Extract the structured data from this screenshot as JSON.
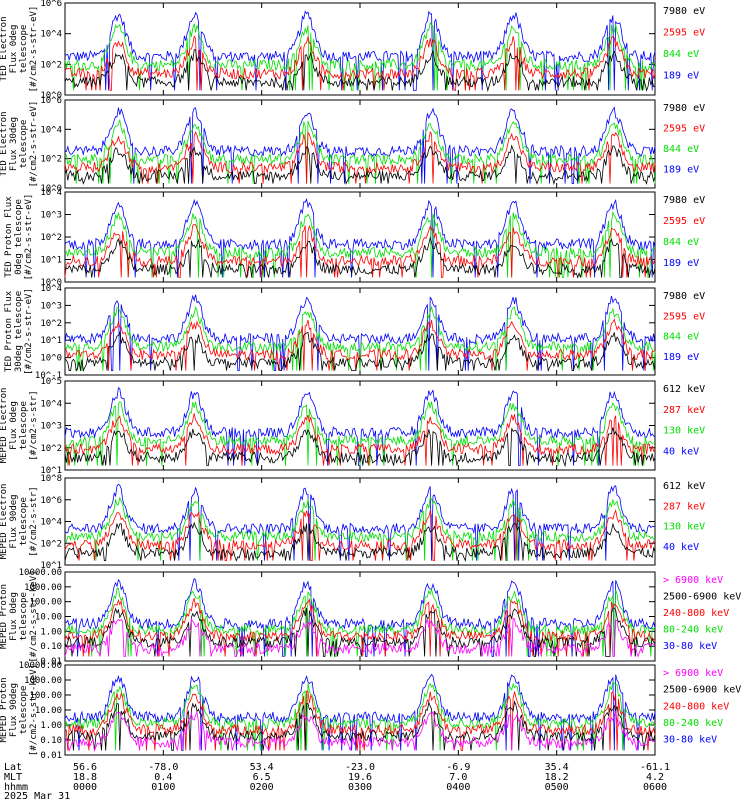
{
  "date_label": "2025 Mar 31",
  "colors": {
    "blue": "#0000ff",
    "red": "#ff0000",
    "green": "#00e000",
    "black": "#000000",
    "magenta": "#ff00ff"
  },
  "footer": {
    "row_labels": [
      "Lat",
      "MLT",
      "hhmm"
    ],
    "columns": [
      {
        "lat": "56.6",
        "mlt": "18.8",
        "hhmm": "0000"
      },
      {
        "lat": "-78.0",
        "mlt": "0.4",
        "hhmm": "0100"
      },
      {
        "lat": "53.4",
        "mlt": "6.5",
        "hhmm": "0200"
      },
      {
        "lat": "-23.0",
        "mlt": "19.6",
        "hhmm": "0300"
      },
      {
        "lat": "-6.9",
        "mlt": "7.0",
        "hhmm": "0400"
      },
      {
        "lat": "35.4",
        "mlt": "18.2",
        "hhmm": "0500"
      },
      {
        "lat": "-61.1",
        "mlt": "4.2",
        "hhmm": "0600"
      }
    ]
  },
  "chart_data": [
    {
      "type": "line",
      "ylabel": "TED Electron Flux 0deg telescope [#/cm2-s-str-eV]",
      "ylim_log10": [
        0,
        6
      ],
      "yticks": [
        "10^0",
        "10^2",
        "10^4",
        "10^6"
      ],
      "legend": [
        {
          "label": "7980 eV",
          "color": "black"
        },
        {
          "label": "2595 eV",
          "color": "red"
        },
        {
          "label": "844 eV",
          "color": "green"
        },
        {
          "label": "189 eV",
          "color": "blue"
        }
      ]
    },
    {
      "type": "line",
      "ylabel": "TED Electron Flux 30deg telescope [#/cm2-s-str-eV]",
      "ylim_log10": [
        0,
        6
      ],
      "yticks": [
        "10^0",
        "10^2",
        "10^4",
        "10^6"
      ],
      "legend": [
        {
          "label": "7980 eV",
          "color": "black"
        },
        {
          "label": "2595 eV",
          "color": "red"
        },
        {
          "label": "844 eV",
          "color": "green"
        },
        {
          "label": "189 eV",
          "color": "blue"
        }
      ]
    },
    {
      "type": "line",
      "ylabel": "TED Proton Flux 0deg telescope [#/cm2-s-str-eV]",
      "ylim_log10": [
        0,
        4
      ],
      "yticks": [
        "10^0",
        "10^1",
        "10^2",
        "10^3",
        "10^4"
      ],
      "legend": [
        {
          "label": "7980 eV",
          "color": "black"
        },
        {
          "label": "2595 eV",
          "color": "red"
        },
        {
          "label": "844 eV",
          "color": "green"
        },
        {
          "label": "189 eV",
          "color": "blue"
        }
      ]
    },
    {
      "type": "line",
      "ylabel": "TED Proton Flux 30deg telescope [#/cm2-s-str-eV]",
      "ylim_log10": [
        -1,
        4
      ],
      "yticks": [
        "10^-1",
        "10^0",
        "10^1",
        "10^2",
        "10^3",
        "10^4"
      ],
      "legend": [
        {
          "label": "7980 eV",
          "color": "black"
        },
        {
          "label": "2595 eV",
          "color": "red"
        },
        {
          "label": "844 eV",
          "color": "green"
        },
        {
          "label": "189 eV",
          "color": "blue"
        }
      ]
    },
    {
      "type": "line",
      "ylabel": "MEPED Electron Flux 0deg telescope [#/cm2-s-str]",
      "ylim_log10": [
        1,
        5
      ],
      "yticks": [
        "10^1",
        "10^2",
        "10^3",
        "10^4",
        "10^5"
      ],
      "legend": [
        {
          "label": "612 keV",
          "color": "black"
        },
        {
          "label": "287 keV",
          "color": "red"
        },
        {
          "label": "130 keV",
          "color": "green"
        },
        {
          "label": "40 keV",
          "color": "blue"
        }
      ]
    },
    {
      "type": "line",
      "ylabel": "MEPED Electron Flux 90deg telescope [#/cm2-s-str]",
      "ylim_log10": [
        1,
        8
      ],
      "yticks": [
        "10^1",
        "10^2",
        "10^4",
        "10^6",
        "10^8"
      ],
      "legend": [
        {
          "label": "612 keV",
          "color": "black"
        },
        {
          "label": "287 keV",
          "color": "red"
        },
        {
          "label": "130 keV",
          "color": "green"
        },
        {
          "label": "40 keV",
          "color": "blue"
        }
      ]
    },
    {
      "type": "line",
      "ylabel": "MEPED Proton Flux 0deg telescope [#/cm2-s-str-keV]",
      "ylim_log10": [
        -2,
        4
      ],
      "yticks": [
        "0.01",
        "0.10",
        "1.00",
        "10.00",
        "100.00",
        "1000.00",
        "10000.00"
      ],
      "legend": [
        {
          "label": "> 6900 keV",
          "color": "magenta"
        },
        {
          "label": "2500-6900 keV",
          "color": "black"
        },
        {
          "label": "240-800 keV",
          "color": "red"
        },
        {
          "label": "80-240 keV",
          "color": "green"
        },
        {
          "label": "30-80 keV",
          "color": "blue"
        }
      ]
    },
    {
      "type": "line",
      "ylabel": "MEPED Proton Flux 90deg telescope [#/cm2-s-str-keV]",
      "ylim_log10": [
        -2,
        4
      ],
      "yticks": [
        "0.01",
        "0.10",
        "1.00",
        "10.00",
        "100.00",
        "1000.00",
        "10000.00"
      ],
      "legend": [
        {
          "label": "> 6900 keV",
          "color": "magenta"
        },
        {
          "label": "2500-6900 keV",
          "color": "black"
        },
        {
          "label": "240-800 keV",
          "color": "red"
        },
        {
          "label": "80-240 keV",
          "color": "green"
        },
        {
          "label": "30-80 keV",
          "color": "blue"
        }
      ]
    }
  ]
}
